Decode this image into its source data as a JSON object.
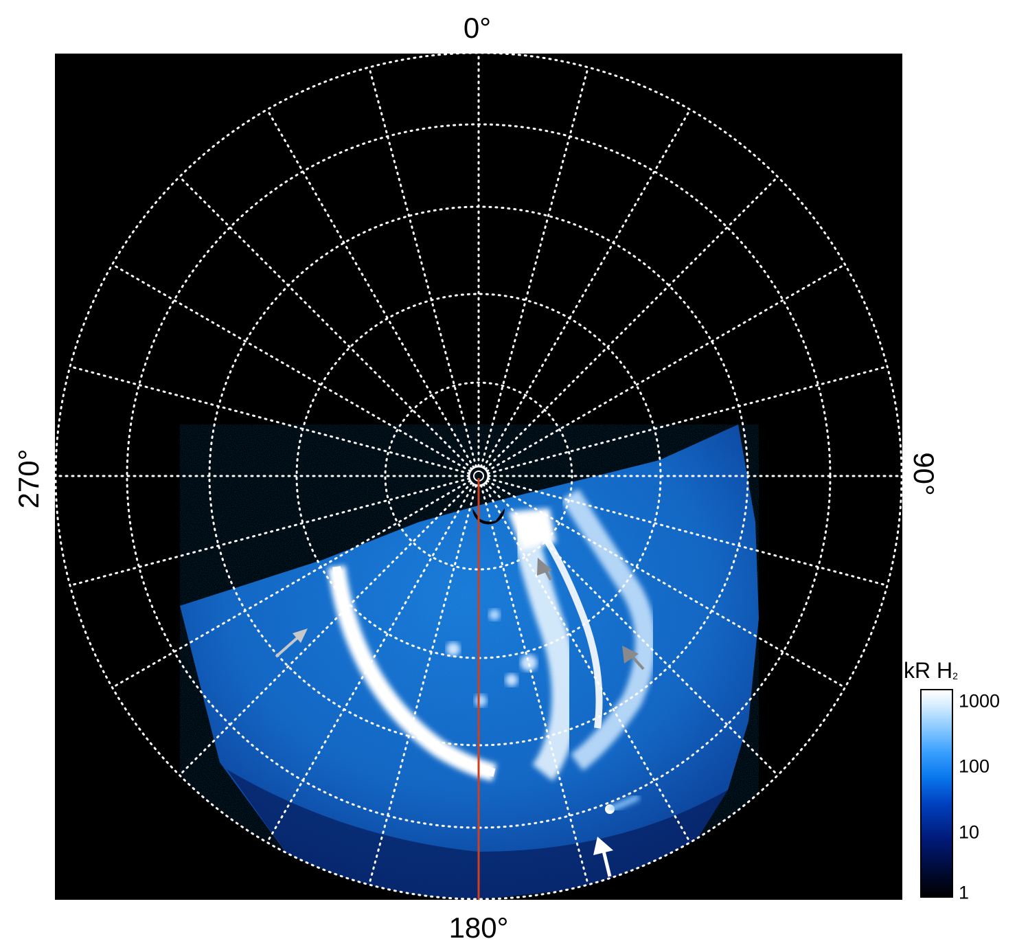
{
  "figure": {
    "labels": {
      "top": "0°",
      "bottom": "180°",
      "left": "270°",
      "right": "90°"
    },
    "colorbar": {
      "title": "kR H",
      "title_subscript": "2",
      "ticks": [
        "1000",
        "100",
        "10",
        "1"
      ],
      "scale": "log",
      "range": [
        1,
        1000
      ],
      "colors": [
        "#000000",
        "#001a7a",
        "#0a78ee",
        "#8ccaff",
        "#ffffff"
      ]
    },
    "grid": {
      "style": "dotted",
      "color": "#ffffff",
      "longitude_step_deg": 15
    },
    "meridian_line_color": "#d0401a",
    "arrows": [
      {
        "color": "light-gray"
      },
      {
        "color": "dark-gray"
      },
      {
        "color": "dark-gray"
      },
      {
        "color": "white"
      }
    ]
  }
}
